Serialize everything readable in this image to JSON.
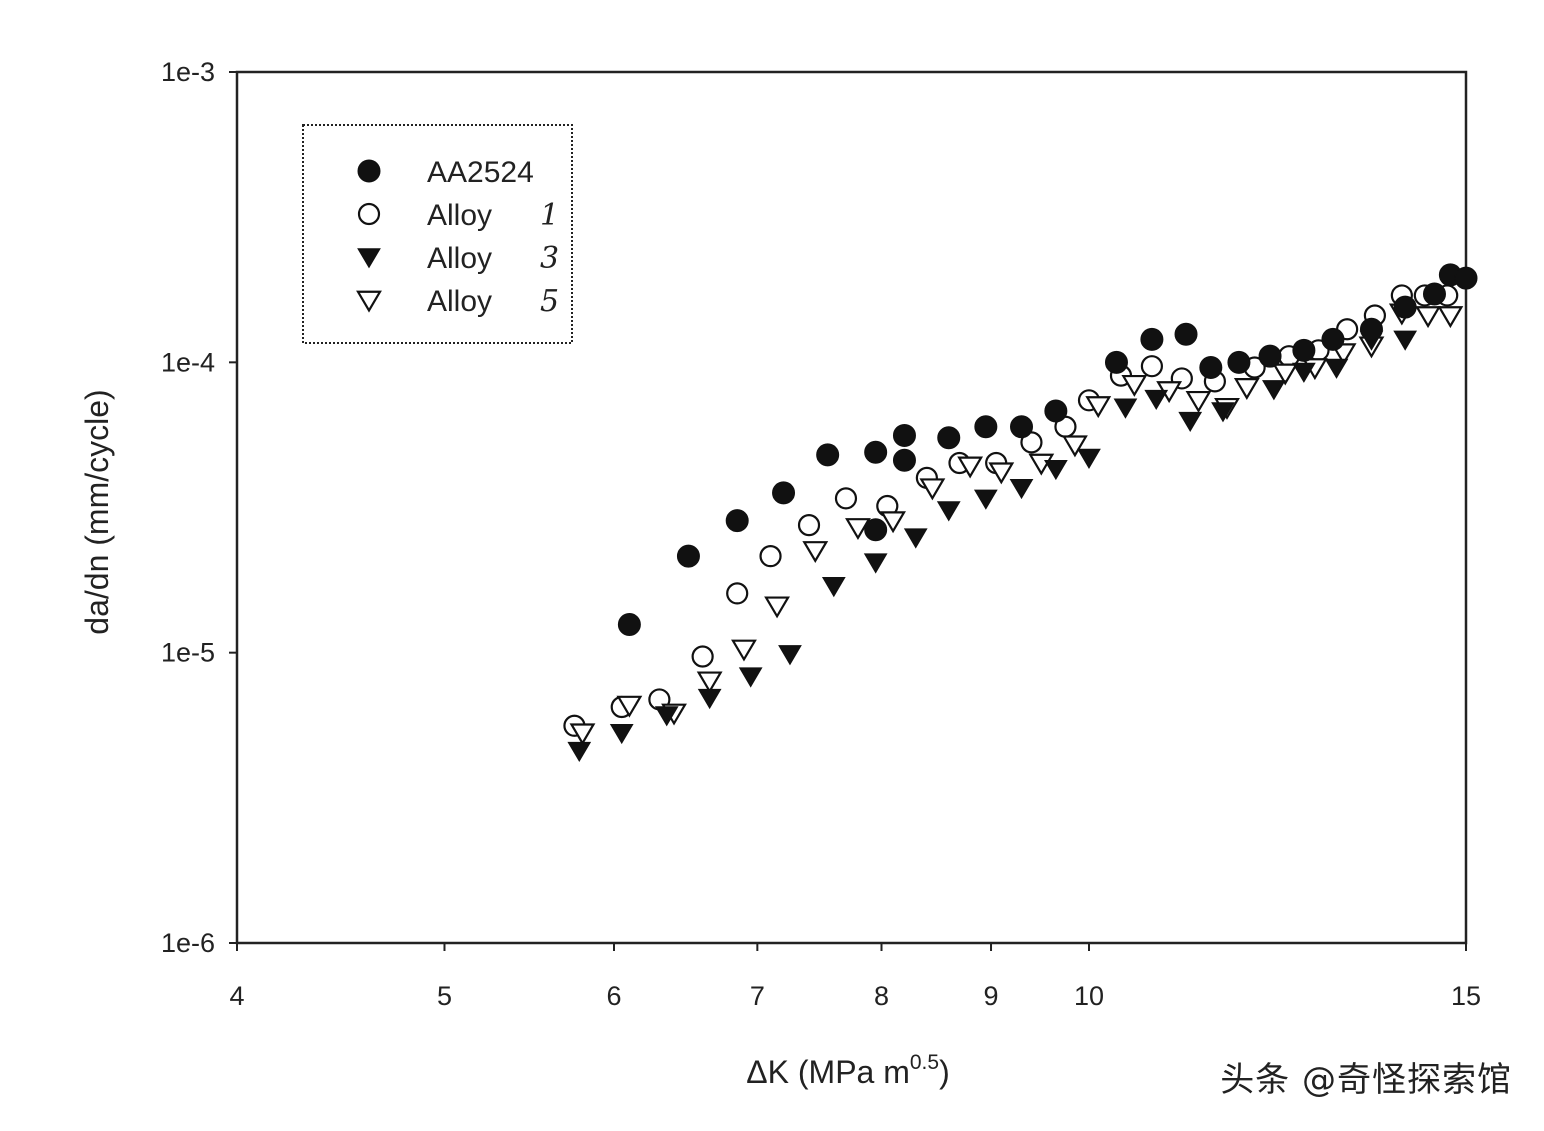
{
  "chart_data": {
    "type": "scatter",
    "title": "",
    "xlabel": "ΔK (MPa m",
    "xlabel_exponent": "0.5",
    "xlabel_suffix": ")",
    "ylabel": "da/dn (mm/cycle)",
    "x_scale": "log",
    "y_scale": "log",
    "xlim": [
      4,
      15
    ],
    "ylim": [
      1e-06,
      0.001
    ],
    "x_ticks": [
      {
        "value": 4,
        "label": "4"
      },
      {
        "value": 5,
        "label": "5"
      },
      {
        "value": 6,
        "label": "6"
      },
      {
        "value": 7,
        "label": "7"
      },
      {
        "value": 8,
        "label": "8"
      },
      {
        "value": 9,
        "label": "9"
      },
      {
        "value": 10,
        "label": "10"
      },
      {
        "value": 15,
        "label": "15"
      }
    ],
    "y_ticks": [
      {
        "value": 1e-06,
        "label": "1e-6"
      },
      {
        "value": 1e-05,
        "label": "1e-5"
      },
      {
        "value": 0.0001,
        "label": "1e-4"
      },
      {
        "value": 0.001,
        "label": "1e-3"
      }
    ],
    "legend": {
      "placement": "top-left",
      "entries": [
        {
          "name": "AA2524",
          "note": "",
          "marker": "filled-circle"
        },
        {
          "name": "Alloy",
          "note": "1",
          "marker": "open-circle"
        },
        {
          "name": "Alloy",
          "note": "3",
          "marker": "filled-triangle-down"
        },
        {
          "name": "Alloy",
          "note": "5",
          "marker": "open-triangle-down"
        }
      ]
    },
    "series": [
      {
        "name": "AA2524",
        "marker": "filled-circle",
        "points": [
          [
            6.1,
            1.25e-05
          ],
          [
            6.5,
            2.15e-05
          ],
          [
            6.85,
            2.85e-05
          ],
          [
            7.2,
            3.55e-05
          ],
          [
            7.55,
            4.8e-05
          ],
          [
            7.95,
            4.9e-05
          ],
          [
            7.95,
            2.65e-05
          ],
          [
            8.2,
            5.6e-05
          ],
          [
            8.2,
            4.6e-05
          ],
          [
            8.6,
            5.5e-05
          ],
          [
            8.95,
            6e-05
          ],
          [
            9.3,
            6e-05
          ],
          [
            9.65,
            6.8e-05
          ],
          [
            10.3,
            0.0001
          ],
          [
            10.7,
            0.00012
          ],
          [
            11.1,
            0.000125
          ],
          [
            11.4,
            9.6e-05
          ],
          [
            11.75,
            0.0001
          ],
          [
            12.15,
            0.000105
          ],
          [
            12.6,
            0.00011
          ],
          [
            13.0,
            0.00012
          ],
          [
            13.55,
            0.00013
          ],
          [
            14.05,
            0.000155
          ],
          [
            14.5,
            0.000172
          ],
          [
            14.75,
            0.0002
          ],
          [
            15.0,
            0.000195
          ]
        ]
      },
      {
        "name": "Alloy 1",
        "marker": "open-circle",
        "points": [
          [
            5.75,
            5.6e-06
          ],
          [
            6.05,
            6.5e-06
          ],
          [
            6.3,
            6.9e-06
          ],
          [
            6.6,
            9.7e-06
          ],
          [
            6.85,
            1.6e-05
          ],
          [
            7.1,
            2.15e-05
          ],
          [
            7.4,
            2.75e-05
          ],
          [
            7.7,
            3.4e-05
          ],
          [
            8.05,
            3.2e-05
          ],
          [
            8.4,
            4e-05
          ],
          [
            8.7,
            4.5e-05
          ],
          [
            9.05,
            4.5e-05
          ],
          [
            9.4,
            5.3e-05
          ],
          [
            9.75,
            6e-05
          ],
          [
            10.0,
            7.4e-05
          ],
          [
            10.35,
            9e-05
          ],
          [
            10.7,
            9.7e-05
          ],
          [
            11.05,
            8.8e-05
          ],
          [
            11.45,
            8.6e-05
          ],
          [
            11.95,
            9.6e-05
          ],
          [
            12.4,
            0.000105
          ],
          [
            12.8,
            0.00011
          ],
          [
            13.2,
            0.00013
          ],
          [
            13.6,
            0.000145
          ],
          [
            14.0,
            0.00017
          ],
          [
            14.35,
            0.00017
          ],
          [
            14.7,
            0.00017
          ]
        ]
      },
      {
        "name": "Alloy 3",
        "marker": "filled-triangle-down",
        "points": [
          [
            5.78,
            4.6e-06
          ],
          [
            6.05,
            5.3e-06
          ],
          [
            6.35,
            6.1e-06
          ],
          [
            6.65,
            7e-06
          ],
          [
            6.95,
            8.3e-06
          ],
          [
            7.25,
            9.9e-06
          ],
          [
            7.6,
            1.7e-05
          ],
          [
            7.95,
            2.05e-05
          ],
          [
            8.3,
            2.5e-05
          ],
          [
            8.6,
            3.1e-05
          ],
          [
            8.95,
            3.4e-05
          ],
          [
            9.3,
            3.7e-05
          ],
          [
            9.65,
            4.3e-05
          ],
          [
            10.0,
            4.7e-05
          ],
          [
            10.4,
            7e-05
          ],
          [
            10.75,
            7.5e-05
          ],
          [
            11.15,
            6.3e-05
          ],
          [
            11.55,
            6.8e-05
          ],
          [
            12.2,
            8.1e-05
          ],
          [
            12.6,
            9.3e-05
          ],
          [
            13.05,
            9.6e-05
          ],
          [
            13.55,
            0.00012
          ],
          [
            14.05,
            0.00012
          ]
        ]
      },
      {
        "name": "Alloy 5",
        "marker": "open-triangle-down",
        "points": [
          [
            5.8,
            5.3e-06
          ],
          [
            6.1,
            6.6e-06
          ],
          [
            6.4,
            6.2e-06
          ],
          [
            6.65,
            8e-06
          ],
          [
            6.9,
            1.03e-05
          ],
          [
            7.15,
            1.45e-05
          ],
          [
            7.45,
            2.25e-05
          ],
          [
            7.8,
            2.7e-05
          ],
          [
            8.1,
            2.85e-05
          ],
          [
            8.45,
            3.7e-05
          ],
          [
            8.8,
            4.4e-05
          ],
          [
            9.1,
            4.2e-05
          ],
          [
            9.5,
            4.5e-05
          ],
          [
            9.85,
            5.2e-05
          ],
          [
            10.1,
            7.1e-05
          ],
          [
            10.5,
            8.4e-05
          ],
          [
            10.9,
            8e-05
          ],
          [
            11.25,
            7.4e-05
          ],
          [
            11.6,
            7e-05
          ],
          [
            11.85,
            8.2e-05
          ],
          [
            12.35,
            9.2e-05
          ],
          [
            12.75,
            9.6e-05
          ],
          [
            13.15,
            0.000108
          ],
          [
            13.55,
            0.000114
          ],
          [
            14.0,
            0.000148
          ],
          [
            14.4,
            0.000145
          ],
          [
            14.75,
            0.000145
          ]
        ]
      }
    ]
  },
  "watermark": "头条 @奇怪探索馆"
}
